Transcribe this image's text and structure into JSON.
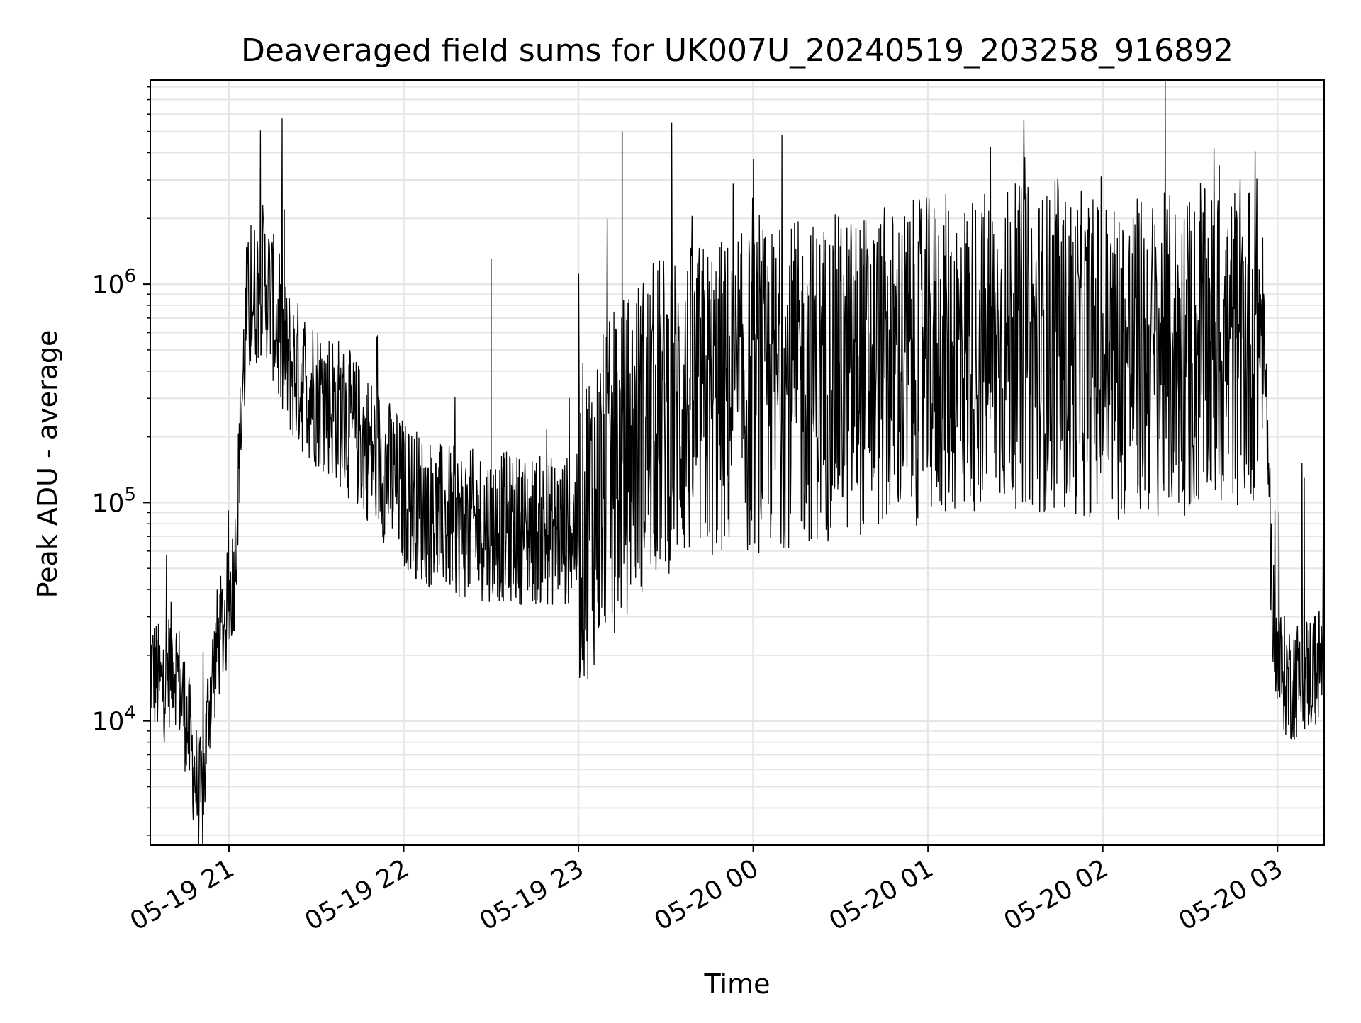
{
  "chart_data": {
    "type": "line",
    "title": "Deaveraged field sums for UK007U_20240519_203258_916892",
    "xlabel": "Time",
    "ylabel": "Peak ADU - average",
    "yscale": "log",
    "grid": true,
    "legend": "none",
    "line_color": "#000000",
    "grid_color": "#e6e6e6",
    "xlim": [
      "2024-05-19 20:33",
      "2024-05-20 03:16"
    ],
    "ylim": [
      2700,
      8600000
    ],
    "x_ticks": [
      {
        "value": "2024-05-19 21:00",
        "label": "05-19 21"
      },
      {
        "value": "2024-05-19 22:00",
        "label": "05-19 22"
      },
      {
        "value": "2024-05-19 23:00",
        "label": "05-19 23"
      },
      {
        "value": "2024-05-20 00:00",
        "label": "05-20 00"
      },
      {
        "value": "2024-05-20 01:00",
        "label": "05-20 01"
      },
      {
        "value": "2024-05-20 02:00",
        "label": "05-20 02"
      },
      {
        "value": "2024-05-20 03:00",
        "label": "05-20 03"
      }
    ],
    "y_ticks": [
      {
        "value": 10000,
        "base": "10",
        "exp": "4"
      },
      {
        "value": 100000,
        "base": "10",
        "exp": "5"
      },
      {
        "value": 1000000,
        "base": "10",
        "exp": "6"
      }
    ],
    "series": [
      {
        "points": [
          [
            "2024-05-19 20:33",
            18000
          ],
          [
            "2024-05-19 20:37",
            14000
          ],
          [
            "2024-05-19 20:41",
            20000
          ],
          [
            "2024-05-19 20:45",
            11000
          ],
          [
            "2024-05-19 20:49",
            5000
          ],
          [
            "2024-05-19 20:51",
            4200
          ],
          [
            "2024-05-19 20:53",
            12000
          ],
          [
            "2024-05-19 20:56",
            22000
          ],
          [
            "2024-05-19 20:59",
            30000
          ],
          [
            "2024-05-19 21:02",
            50000
          ],
          [
            "2024-05-19 21:04",
            220000
          ],
          [
            "2024-05-19 21:06",
            700000
          ],
          [
            "2024-05-19 21:09",
            900000
          ],
          [
            "2024-05-19 21:12",
            1100000
          ],
          [
            "2024-05-19 21:15",
            800000
          ],
          [
            "2024-05-19 21:18",
            500000
          ],
          [
            "2024-05-19 21:24",
            380000
          ],
          [
            "2024-05-19 21:30",
            320000
          ],
          [
            "2024-05-19 21:36",
            280000
          ],
          [
            "2024-05-19 21:42",
            220000
          ],
          [
            "2024-05-19 21:48",
            180000
          ],
          [
            "2024-05-19 21:54",
            140000
          ],
          [
            "2024-05-19 22:00",
            110000
          ],
          [
            "2024-05-19 22:06",
            95000
          ],
          [
            "2024-05-19 22:12",
            85000
          ],
          [
            "2024-05-19 22:20",
            80000
          ],
          [
            "2024-05-19 22:30",
            78000
          ],
          [
            "2024-05-19 22:40",
            76000
          ],
          [
            "2024-05-19 22:50",
            74000
          ],
          [
            "2024-05-19 23:00",
            75000
          ],
          [
            "2024-05-19 23:10",
            120000
          ],
          [
            "2024-05-19 23:20",
            200000
          ],
          [
            "2024-05-19 23:30",
            260000
          ],
          [
            "2024-05-19 23:40",
            280000
          ],
          [
            "2024-05-19 23:50",
            300000
          ],
          [
            "2024-05-20 00:00",
            320000
          ],
          [
            "2024-05-20 00:10",
            340000
          ],
          [
            "2024-05-20 00:20",
            360000
          ],
          [
            "2024-05-20 00:30",
            380000
          ],
          [
            "2024-05-20 00:40",
            400000
          ],
          [
            "2024-05-20 00:50",
            420000
          ],
          [
            "2024-05-20 01:00",
            450000
          ],
          [
            "2024-05-20 01:10",
            480000
          ],
          [
            "2024-05-20 01:20",
            500000
          ],
          [
            "2024-05-20 01:30",
            520000
          ],
          [
            "2024-05-20 01:40",
            500000
          ],
          [
            "2024-05-20 01:50",
            480000
          ],
          [
            "2024-05-20 02:00",
            470000
          ],
          [
            "2024-05-20 02:10",
            460000
          ],
          [
            "2024-05-20 02:20",
            470000
          ],
          [
            "2024-05-20 02:30",
            480000
          ],
          [
            "2024-05-20 02:40",
            500000
          ],
          [
            "2024-05-20 02:50",
            550000
          ],
          [
            "2024-05-20 02:55",
            600000
          ],
          [
            "2024-05-20 02:57",
            150000
          ],
          [
            "2024-05-20 02:58",
            40000
          ],
          [
            "2024-05-20 03:00",
            18000
          ],
          [
            "2024-05-20 03:04",
            15000
          ],
          [
            "2024-05-20 03:08",
            16000
          ],
          [
            "2024-05-20 03:12",
            17000
          ],
          [
            "2024-05-20 03:16",
            19000
          ]
        ]
      }
    ],
    "spikes": [
      [
        "2024-05-19 23:15",
        5000000
      ],
      [
        "2024-05-20 02:40",
        3500000
      ],
      [
        "2024-05-20 02:50",
        2600000
      ],
      [
        "2024-05-19 21:19",
        2200000
      ],
      [
        "2024-05-19 22:30",
        1300000
      ]
    ]
  }
}
